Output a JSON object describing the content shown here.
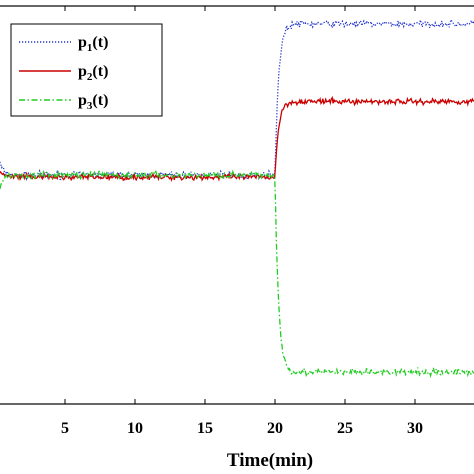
{
  "chart_data": {
    "type": "line",
    "xlabel": "Time(min)",
    "x_ticks": [
      5,
      10,
      15,
      20,
      25,
      30
    ],
    "xlim": [
      0,
      34.5
    ],
    "ylim": [
      0,
      1
    ],
    "series_step_time": 20,
    "legend": {
      "placement": "top-left"
    },
    "series": [
      {
        "name": "p",
        "subscript": "1",
        "suffix": "(t)",
        "color": "#2233cc",
        "dash": "dotted",
        "start": 0.7,
        "before": 0.575,
        "after": 0.955,
        "noise": 0.006,
        "legend_style": "dotted"
      },
      {
        "name": "p",
        "subscript": "2",
        "suffix": "(t)",
        "color": "#cc0000",
        "dash": "solid",
        "start": 0.62,
        "before": 0.57,
        "after": 0.76,
        "noise": 0.005,
        "legend_style": "solid"
      },
      {
        "name": "p",
        "subscript": "3",
        "suffix": "(t)",
        "color": "#22cc22",
        "dash": "dashdot",
        "start": 0.45,
        "before": 0.575,
        "after": 0.08,
        "noise": 0.006,
        "legend_style": "dashdot"
      }
    ]
  }
}
